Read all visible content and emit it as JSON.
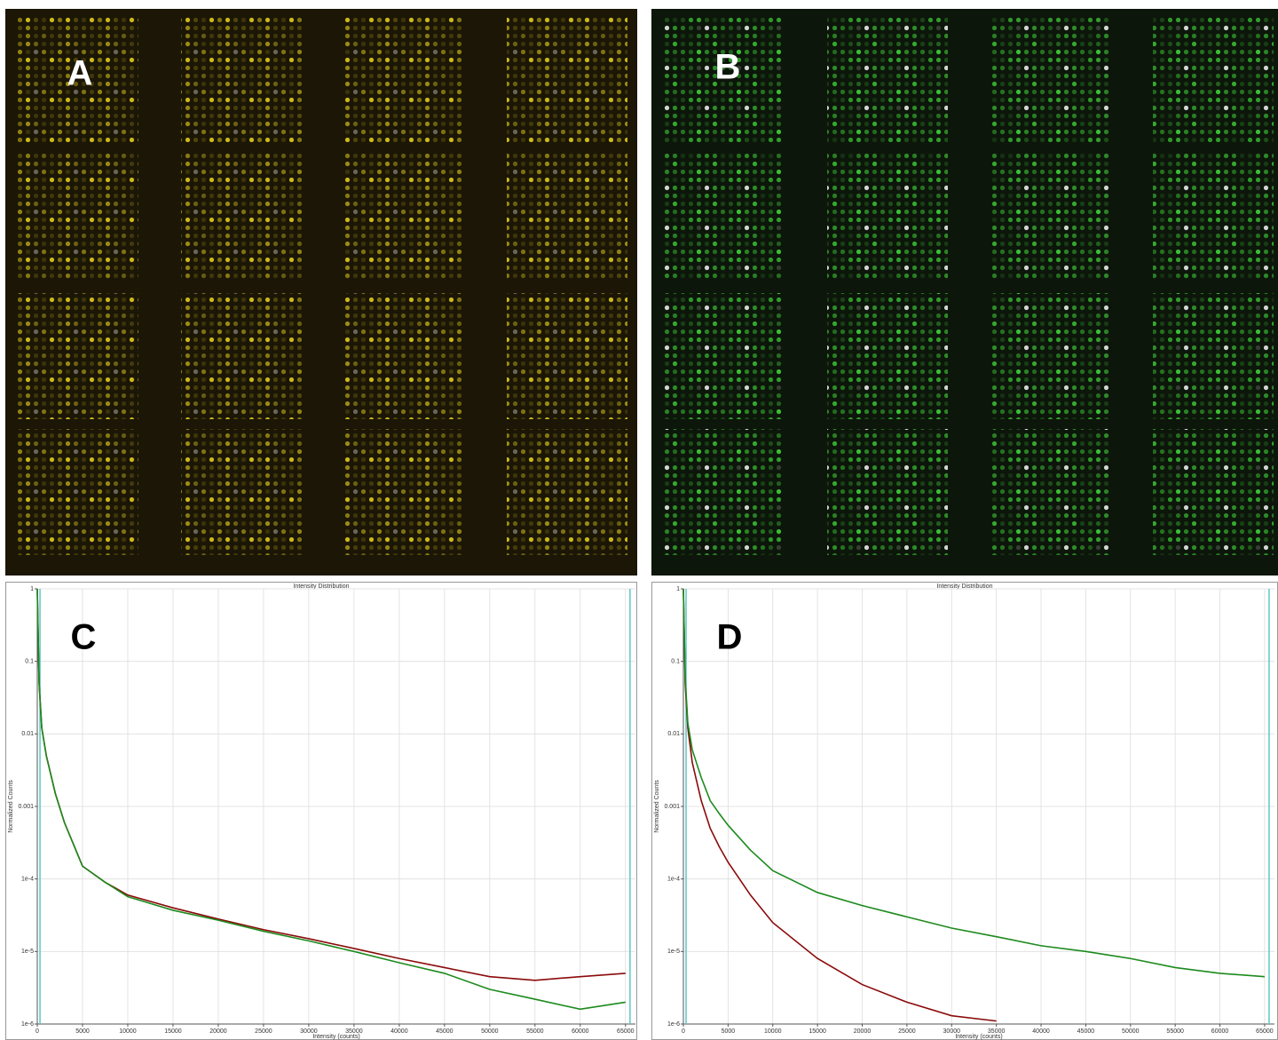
{
  "images": [
    {
      "label": "A"
    },
    {
      "label": "B"
    }
  ],
  "chart_data": [
    {
      "type": "line",
      "panel_label": "C",
      "title": "Intensity Distribution",
      "x_label": "Intensity (counts)",
      "y_label": "Normalized Counts",
      "log_y": true,
      "grid": true,
      "xlim": [
        0,
        66100
      ],
      "ylim": [
        1e-06,
        1
      ],
      "xticks": [
        0,
        5000,
        10000,
        15000,
        20000,
        25000,
        30000,
        35000,
        40000,
        45000,
        50000,
        55000,
        60000,
        65000
      ],
      "yticks": [
        1,
        0.1,
        0.01,
        0.001,
        {
          "value": 0.0001,
          "label": "1e-4"
        },
        {
          "value": 1e-05,
          "label": "1e-5"
        },
        {
          "value": 1e-06,
          "label": "1e-6"
        }
      ],
      "x": [
        0,
        200,
        500,
        1000,
        2000,
        3000,
        4000,
        5000,
        7500,
        10000,
        15000,
        20000,
        25000,
        30000,
        35000,
        40000,
        45000,
        50000,
        55000,
        60000,
        65000
      ],
      "series": [
        {
          "color": "#8b0a0a",
          "values": [
            1,
            0.05,
            0.012,
            0.005,
            0.0015,
            0.0006,
            0.0003,
            0.00015,
            9e-05,
            6e-05,
            4e-05,
            2.8e-05,
            2e-05,
            1.5e-05,
            1.1e-05,
            8e-06,
            6e-06,
            4.5e-06,
            4e-06,
            4.5e-06,
            5e-06
          ]
        },
        {
          "color": "#1d8a1d",
          "values": [
            1,
            0.05,
            0.012,
            0.005,
            0.0015,
            0.0006,
            0.0003,
            0.00015,
            9e-05,
            5.7e-05,
            3.7e-05,
            2.7e-05,
            1.9e-05,
            1.4e-05,
            1e-05,
            7e-06,
            5e-06,
            3e-06,
            2.2e-06,
            1.6e-06,
            2e-06
          ]
        }
      ],
      "vlines": {
        "color": "#5cc6c6",
        "x": [
          300,
          65500
        ]
      }
    },
    {
      "type": "line",
      "panel_label": "D",
      "title": "Intensity Distribution",
      "x_label": "Intensity (counts)",
      "y_label": "Normalized Counts",
      "log_y": true,
      "grid": true,
      "xlim": [
        0,
        66100
      ],
      "ylim": [
        1e-06,
        1
      ],
      "xticks": [
        0,
        5000,
        10000,
        15000,
        20000,
        25000,
        30000,
        35000,
        40000,
        45000,
        50000,
        55000,
        60000,
        65000
      ],
      "yticks": [
        1,
        0.1,
        0.01,
        0.001,
        {
          "value": 0.0001,
          "label": "1e-4"
        },
        {
          "value": 1e-05,
          "label": "1e-5"
        },
        {
          "value": 1e-06,
          "label": "1e-6"
        }
      ],
      "x": [
        0,
        200,
        500,
        1000,
        2000,
        3000,
        4000,
        5000,
        7500,
        10000,
        15000,
        20000,
        25000,
        30000,
        35000,
        40000,
        45000,
        50000,
        55000,
        60000,
        65000
      ],
      "series": [
        {
          "color": "#8b0a0a",
          "values": [
            1,
            0.05,
            0.012,
            0.004,
            0.0012,
            0.0005,
            0.00028,
            0.00017,
            6e-05,
            2.5e-05,
            8e-06,
            3.5e-06,
            2e-06,
            1.3e-06,
            1.1e-06,
            null,
            null,
            null,
            null,
            null,
            null
          ]
        },
        {
          "color": "#1d8a1d",
          "values": [
            1,
            0.06,
            0.014,
            0.006,
            0.0025,
            0.0012,
            0.0008,
            0.00055,
            0.00025,
            0.00013,
            6.5e-05,
            4.3e-05,
            3e-05,
            2.1e-05,
            1.6e-05,
            1.2e-05,
            1e-05,
            8e-06,
            6e-06,
            5e-06,
            4.5e-06
          ]
        }
      ],
      "vlines": {
        "color": "#5cc6c6",
        "x": [
          300,
          65500
        ]
      }
    }
  ]
}
